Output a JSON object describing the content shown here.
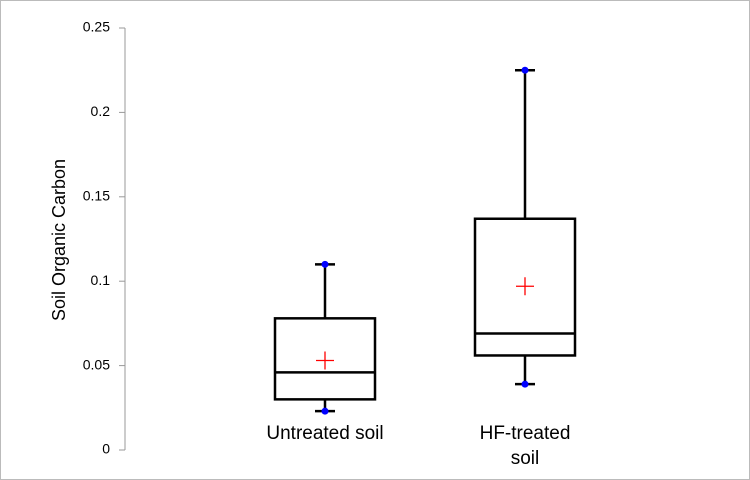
{
  "chart_data": {
    "type": "box",
    "y_label": "Soil Organic Carbon",
    "categories": [
      "Untreated soil",
      "HF-treated soil"
    ],
    "min": [
      0.023,
      0.039
    ],
    "q1": [
      0.03,
      0.056
    ],
    "median": [
      0.046,
      0.069
    ],
    "q3": [
      0.078,
      0.137
    ],
    "max": [
      0.11,
      0.225
    ],
    "mean": [
      0.053,
      0.097
    ],
    "box_color": "#000000",
    "point_color": "#0000ff",
    "mean_color": "#ff0000",
    "ylim": [
      0,
      0.25
    ],
    "yticks": [
      0,
      0.05,
      0.1,
      0.15,
      0.2,
      0.25
    ]
  }
}
